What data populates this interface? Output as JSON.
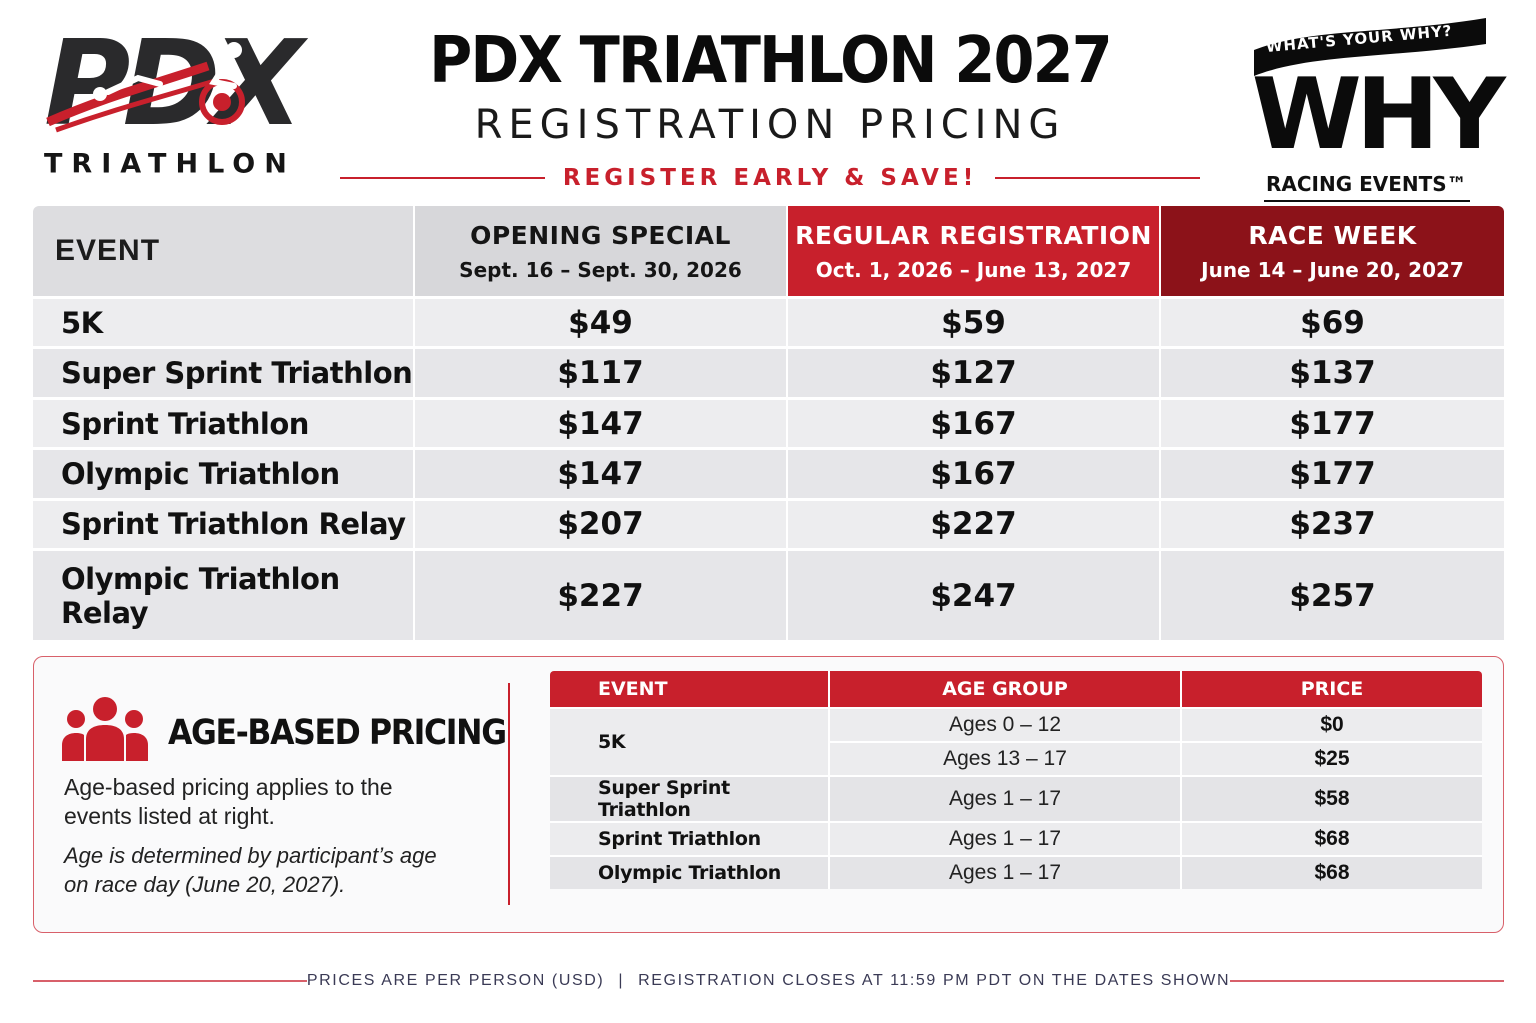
{
  "logos": {
    "left": {
      "big_text": "PDX",
      "word": "TRIATHLON"
    },
    "right": {
      "banner": "WHAT'S YOUR WHY?",
      "big_text": "WHY",
      "sub": "RACING EVENTS™"
    }
  },
  "header": {
    "title": "PDX TRIATHLON 2027",
    "subtitle": "REGISTRATION PRICING",
    "tagline": "REGISTER EARLY & SAVE!"
  },
  "pricing": {
    "columns": [
      {
        "label": "EVENT"
      },
      {
        "label": "OPENING SPECIAL",
        "dates": "Sept. 16 – Sept. 30, 2026"
      },
      {
        "label": "REGULAR REGISTRATION",
        "dates": "Oct. 1, 2026 – June 13, 2027"
      },
      {
        "label": "RACE WEEK",
        "dates": "June 14 – June 20, 2027"
      }
    ],
    "rows": [
      {
        "event": "5K",
        "prices": [
          "$49",
          "$59",
          "$69"
        ]
      },
      {
        "event": "Super Sprint Triathlon",
        "prices": [
          "$117",
          "$127",
          "$137"
        ]
      },
      {
        "event": "Sprint Triathlon",
        "prices": [
          "$147",
          "$167",
          "$177"
        ]
      },
      {
        "event": "Olympic Triathlon",
        "prices": [
          "$147",
          "$167",
          "$177"
        ]
      },
      {
        "event": "Sprint Triathlon Relay",
        "prices": [
          "$207",
          "$227",
          "$237"
        ]
      },
      {
        "event": "Olympic Triathlon Relay",
        "prices": [
          "$227",
          "$247",
          "$257"
        ]
      }
    ]
  },
  "age_pricing": {
    "icon": "people-group-icon",
    "title": "AGE-BASED PRICING",
    "description": "Age-based pricing applies to the events listed at right.",
    "note": "Age is determined by participant’s age on race day (June 20, 2027).",
    "headers": [
      "EVENT",
      "AGE GROUP",
      "PRICE"
    ],
    "rows": [
      {
        "event": "5K",
        "age": "Ages 0 – 12",
        "price": "$0"
      },
      {
        "event": "",
        "age": "Ages 13 – 17",
        "price": "$25"
      },
      {
        "event": "Super Sprint Triathlon",
        "age": "Ages 1 – 17",
        "price": "$58"
      },
      {
        "event": "Sprint Triathlon",
        "age": "Ages 1 – 17",
        "price": "$68"
      },
      {
        "event": "Olympic Triathlon",
        "age": "Ages 1 – 17",
        "price": "$68"
      }
    ]
  },
  "footer": {
    "left": "PRICES ARE PER PERSON (USD)",
    "separator": "|",
    "right": "REGISTRATION CLOSES AT 11:59 PM PDT ON THE DATES SHOWN"
  },
  "colors": {
    "accent_red": "#c8202c",
    "dark_red": "#8c1219",
    "header_gray": "#d7d7da",
    "row_gray": "#ededef"
  }
}
